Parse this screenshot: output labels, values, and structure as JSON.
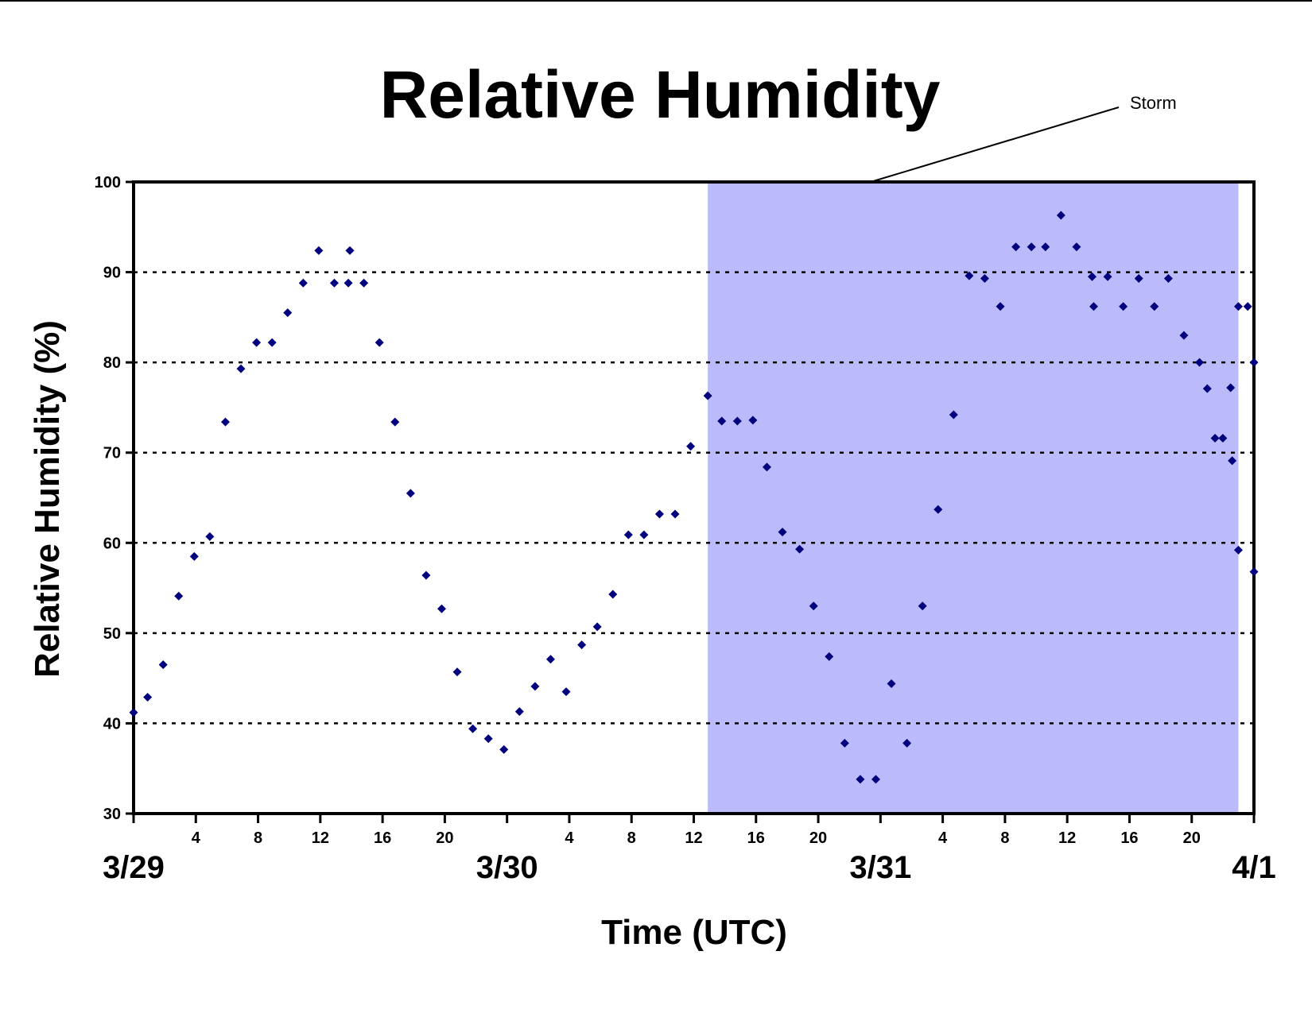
{
  "chart_data": {
    "type": "scatter",
    "title": "Relative Humidity",
    "xlabel": "Time (UTC)",
    "ylabel": "Relative Humidity (%)",
    "ylim": [
      30,
      100
    ],
    "yticks": [
      "30",
      "40",
      "50",
      "60",
      "70",
      "80",
      "90",
      "100"
    ],
    "grid": "horizontal dotted at 40–90",
    "x_unit": "hours from 3/29 00 UTC",
    "xlim": [
      0,
      72
    ],
    "hour_ticks": [
      "4",
      "8",
      "12",
      "16",
      "20",
      "4",
      "8",
      "12",
      "16",
      "20",
      "4",
      "8",
      "12",
      "16",
      "20"
    ],
    "date_labels": [
      "3/29",
      "3/30",
      "3/31",
      "4/1"
    ],
    "annotation": {
      "text": "Storm",
      "shaded_x_range": [
        36.9,
        71
      ]
    },
    "colors": {
      "marker": "#00007f",
      "storm_shade": "#bbbbfb",
      "grid": "#000000"
    },
    "series": [
      {
        "x": [
          0,
          0.9,
          1.9,
          2.9,
          3.9,
          4.9,
          5.9,
          6.9,
          7.9,
          8.9,
          9.9,
          10.9,
          11.9,
          12.9,
          13.8,
          13.9,
          14.8,
          15.8,
          16.8,
          17.8,
          18.8,
          19.8,
          20.8,
          21.8,
          22.8,
          23.8,
          24.8,
          25.8,
          26.8,
          27.8,
          28.8,
          29.8,
          30.8,
          31.8,
          32.8,
          33.8,
          34.8,
          35.8,
          36.9,
          37.8,
          38.8,
          39.8,
          40.7,
          41.7,
          42.8,
          43.7,
          44.7,
          45.7,
          46.7,
          47.7,
          48.7,
          49.7,
          50.7,
          51.7,
          52.7,
          53.7,
          54.7,
          55.7,
          56.7,
          57.7,
          58.6,
          59.6,
          60.6,
          61.6,
          61.7,
          62.6,
          63.6,
          64.6,
          65.6,
          66.5,
          67.5,
          68.5,
          69.0,
          69.5,
          70.0,
          70.5,
          70.6,
          71.0,
          71.6,
          72.0
        ],
        "y": [
          41.2,
          42.9,
          46.5,
          54.1,
          58.5,
          60.7,
          73.4,
          79.3,
          82.2,
          82.2,
          85.5,
          88.8,
          92.4,
          88.8,
          88.8,
          92.4,
          88.8,
          82.2,
          73.4,
          65.5,
          56.4,
          52.7,
          45.7,
          39.4,
          38.3,
          37.1,
          41.3,
          44.1,
          47.1,
          43.5,
          48.7,
          50.7,
          54.3,
          60.9,
          60.9,
          63.2,
          63.2,
          70.7,
          76.3,
          73.5,
          73.5,
          73.6,
          68.4,
          61.2,
          59.3,
          53.0,
          47.4,
          37.8,
          33.8,
          33.8,
          44.4,
          37.8,
          53.0,
          63.7,
          74.2,
          89.6,
          89.3,
          86.2,
          92.8,
          92.8,
          92.8,
          96.3,
          92.8,
          89.5,
          86.2,
          89.5,
          86.2,
          89.3,
          86.2,
          89.3,
          83.0,
          80.0,
          77.1,
          71.6,
          71.6,
          77.2,
          69.1,
          86.2,
          86.2,
          80.0
        ]
      }
    ],
    "trailing_points": {
      "x": [
        71.0,
        72.0
      ],
      "y": [
        59.2,
        56.8
      ]
    }
  }
}
